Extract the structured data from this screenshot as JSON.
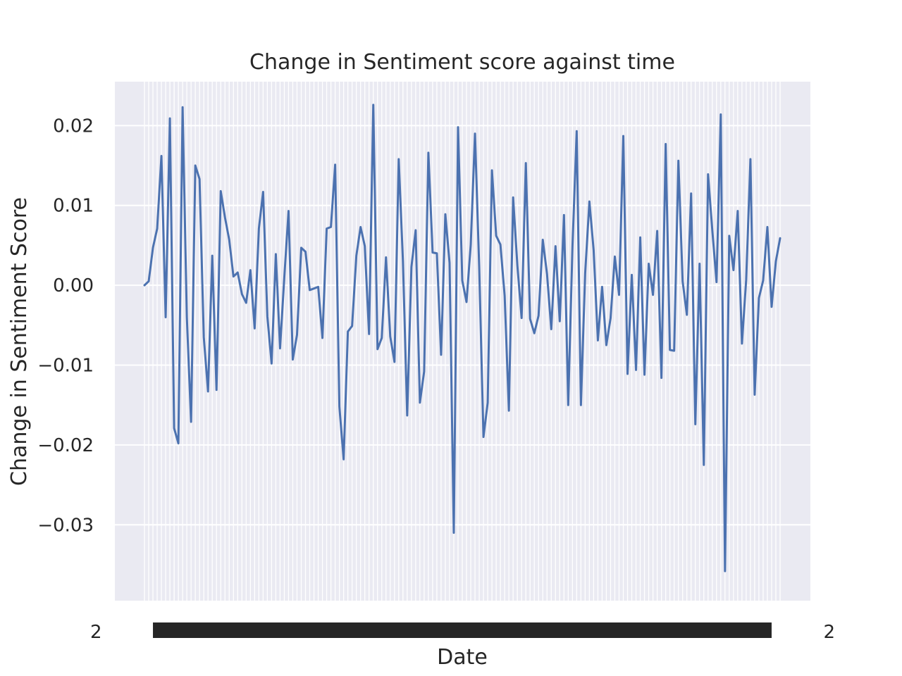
{
  "chart_data": {
    "type": "line",
    "title": "Change in Sentiment score against time",
    "xlabel": "Date",
    "ylabel": "Change in Sentiment Score",
    "ylim": [
      -0.0395,
      0.0255
    ],
    "yticks": [
      0.02,
      0.01,
      0.0,
      -0.01,
      -0.02,
      -0.03
    ],
    "ytick_labels": [
      "0.02",
      "0.01",
      "0.00",
      "−0.01",
      "−0.02",
      "−0.03"
    ],
    "xtick_labels_note_left": "2",
    "xtick_labels_note_right": "2",
    "grid": true,
    "colors": {
      "line": "#4c72b0",
      "background": "#eaeaf2",
      "grid": "#ffffff",
      "text": "#262626"
    },
    "series": [
      {
        "values": [
          0.0,
          0.0005,
          0.0047,
          0.0071,
          0.0162,
          -0.004,
          0.0209,
          -0.0179,
          -0.0198,
          0.0223,
          -0.004,
          -0.0171,
          0.015,
          0.0133,
          -0.0065,
          -0.0133,
          0.0037,
          -0.0131,
          0.0118,
          0.0085,
          0.0057,
          0.0011,
          0.0016,
          -0.0011,
          -0.0022,
          0.0019,
          -0.0054,
          0.0071,
          0.0117,
          -0.0039,
          -0.0098,
          0.0039,
          -0.0079,
          0.001,
          0.0093,
          -0.0093,
          -0.0062,
          0.0047,
          0.0042,
          -0.0006,
          -0.0004,
          -0.0002,
          -0.0066,
          0.0071,
          0.0073,
          0.0151,
          -0.0152,
          -0.0218,
          -0.0058,
          -0.0051,
          0.0037,
          0.0073,
          0.0049,
          -0.0061,
          0.0226,
          -0.008,
          -0.0066,
          0.0035,
          -0.0064,
          -0.0096,
          0.0158,
          0.003,
          -0.0163,
          0.0023,
          0.0069,
          -0.0147,
          -0.0108,
          0.0166,
          0.0041,
          0.004,
          -0.0087,
          0.0089,
          0.0028,
          -0.031,
          0.0198,
          0.0006,
          -0.0021,
          0.0051,
          0.019,
          0.0022,
          -0.019,
          -0.0147,
          0.0144,
          0.0062,
          0.0051,
          -0.0013,
          -0.0157,
          0.011,
          0.0025,
          -0.0041,
          0.0153,
          -0.0042,
          -0.006,
          -0.0038,
          0.0057,
          0.0014,
          -0.0055,
          0.0049,
          -0.0045,
          0.0088,
          -0.015,
          0.0048,
          0.0193,
          -0.015,
          0.0015,
          0.0105,
          0.0044,
          -0.0069,
          -0.0002,
          -0.0075,
          -0.0041,
          0.0036,
          -0.0012,
          0.0187,
          -0.0111,
          0.0013,
          -0.0106,
          0.006,
          -0.0112,
          0.0027,
          -0.0012,
          0.0068,
          -0.0116,
          0.0177,
          -0.0081,
          -0.0082,
          0.0156,
          0.0005,
          -0.0037,
          0.0115,
          -0.0174,
          0.0027,
          -0.0225,
          0.0139,
          0.0069,
          0.0004,
          0.0214,
          -0.0358,
          0.0062,
          0.0019,
          0.0093,
          -0.0073,
          0.0007,
          0.0158,
          -0.0137,
          -0.0016,
          0.0006,
          0.0073,
          -0.0027,
          0.003,
          0.0059
        ]
      }
    ]
  }
}
